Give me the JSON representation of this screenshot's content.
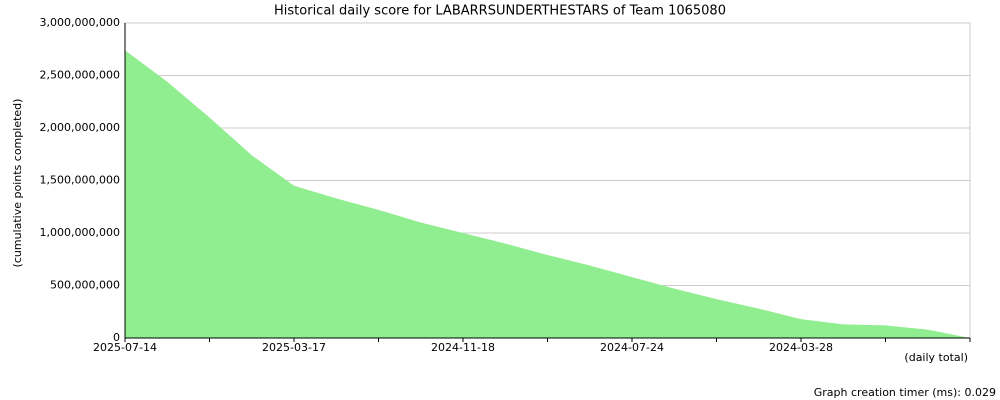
{
  "chart_data": {
    "type": "area",
    "title": "Historical daily score for LABARRSUNDERTHESTARS of Team 1065080",
    "y_label": "(cumulative points completed)",
    "x_label": "(daily total)",
    "footer": "Graph creation timer (ms): 0.029",
    "categories": [
      "2025-07-14",
      null,
      null,
      null,
      "2025-03-17",
      null,
      null,
      null,
      "2024-11-18",
      null,
      null,
      null,
      "2024-07-24",
      null,
      null,
      null,
      "2024-03-28",
      null,
      null,
      null,
      null
    ],
    "values": [
      2740000000,
      2440000000,
      2100000000,
      1740000000,
      1450000000,
      1330000000,
      1220000000,
      1100000000,
      1000000000,
      900000000,
      790000000,
      690000000,
      580000000,
      470000000,
      370000000,
      280000000,
      180000000,
      130000000,
      120000000,
      80000000,
      0
    ],
    "color": "#90ee90",
    "ylim": [
      0,
      3000000000
    ],
    "yticks": [
      {
        "value": 0,
        "label": "0"
      },
      {
        "value": 500000000,
        "label": "500,000,000"
      },
      {
        "value": 1000000000,
        "label": "1,000,000,000"
      },
      {
        "value": 1500000000,
        "label": "1,500,000,000"
      },
      {
        "value": 2000000000,
        "label": "2,000,000,000"
      },
      {
        "value": 2500000000,
        "label": "2,500,000,000"
      },
      {
        "value": 3000000000,
        "label": "3,000,000,000"
      }
    ],
    "grid": true
  }
}
